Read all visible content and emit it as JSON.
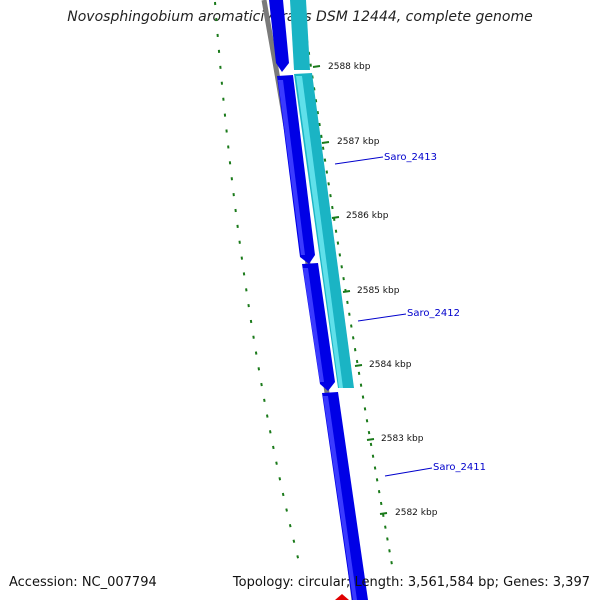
{
  "header": {
    "title": "Novosphingobium aromaticivorans DSM 12444, complete genome"
  },
  "footer": {
    "accession": "Accession: NC_007794",
    "summary": "Topology: circular; Length: 3,561,584 bp; Genes: 3,397"
  },
  "colors": {
    "forward_gene": "#0000e6",
    "reverse_gene": "#1ab4c4",
    "backbone": "#7a7a7a",
    "gc_skew": "#1a7a1a",
    "label_line": "#0000cc",
    "marker": "#e00000"
  },
  "map": {
    "tick_labels": [
      "2588 kbp",
      "2587 kbp",
      "2586 kbp",
      "2585 kbp",
      "2584 kbp",
      "2583 kbp",
      "2582 kbp"
    ],
    "gene_labels": [
      "Saro_2413",
      "Saro_2412",
      "Saro_2411"
    ]
  }
}
